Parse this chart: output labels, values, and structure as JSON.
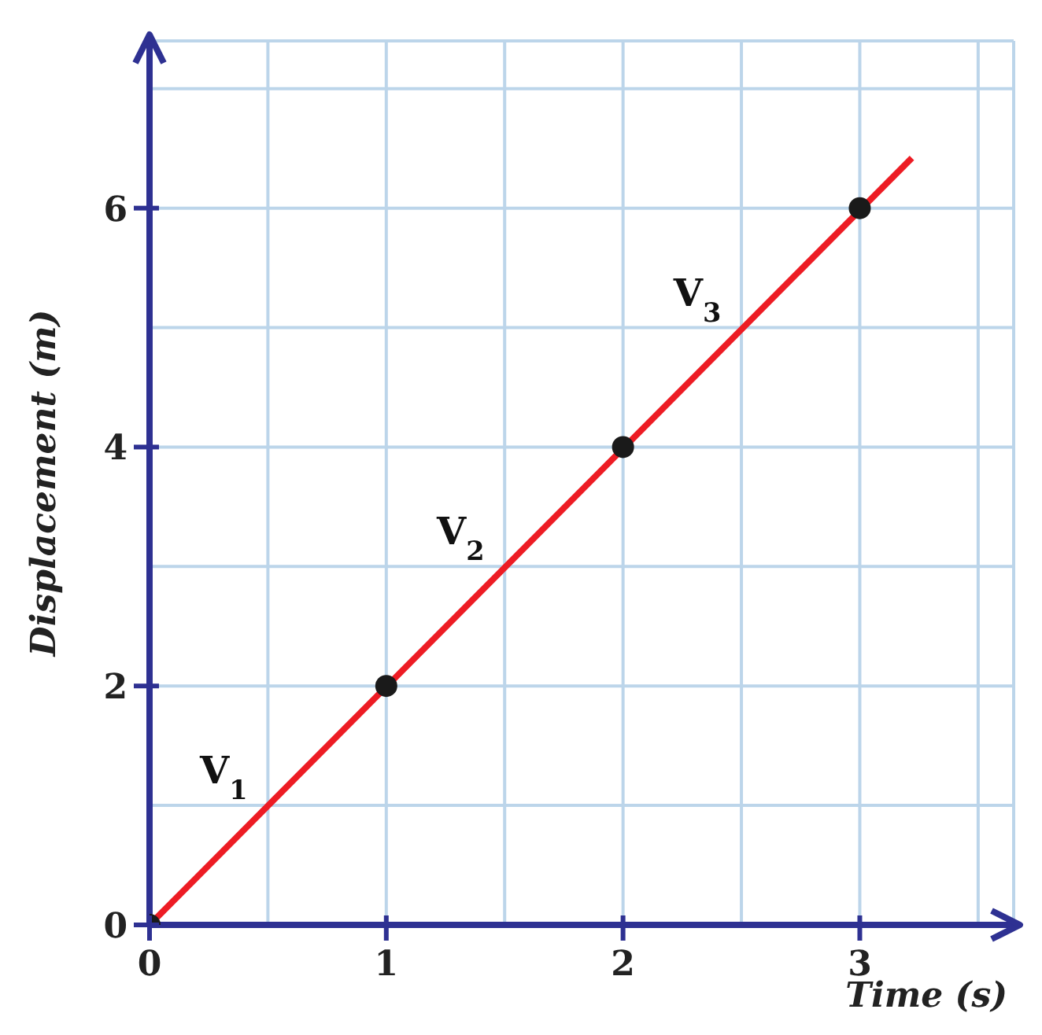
{
  "chart_data": {
    "type": "line",
    "xlabel": "Time (s)",
    "ylabel": "Displacement (m)",
    "xlim": [
      0,
      3.65
    ],
    "ylim": [
      0,
      7.4
    ],
    "xticks": [
      0,
      {
        "value": 0.5,
        "label": null
      },
      1,
      {
        "value": 1.5,
        "label": null
      },
      2,
      {
        "value": 2.5,
        "label": null
      },
      3,
      {
        "value": 3.5,
        "label": null
      }
    ],
    "yticks": [
      0,
      {
        "value": 1,
        "label": null
      },
      2,
      {
        "value": 3,
        "label": null
      },
      4,
      {
        "value": 5,
        "label": null
      },
      6,
      {
        "value": 7,
        "label": null
      }
    ],
    "grid": true,
    "series": [
      {
        "type": "line",
        "color": "#ed1c24",
        "x": [
          0,
          3.22
        ],
        "values": [
          0,
          6.42
        ],
        "marker": "none"
      },
      {
        "type": "scatter",
        "color": "#1a1a1a",
        "x": [
          0,
          1,
          2,
          3
        ],
        "values": [
          0,
          2,
          4,
          6
        ],
        "marker": "circle"
      }
    ],
    "annotations": [
      "V$_{1}$",
      "V$_{2}$",
      "V$_{3}$"
    ]
  }
}
